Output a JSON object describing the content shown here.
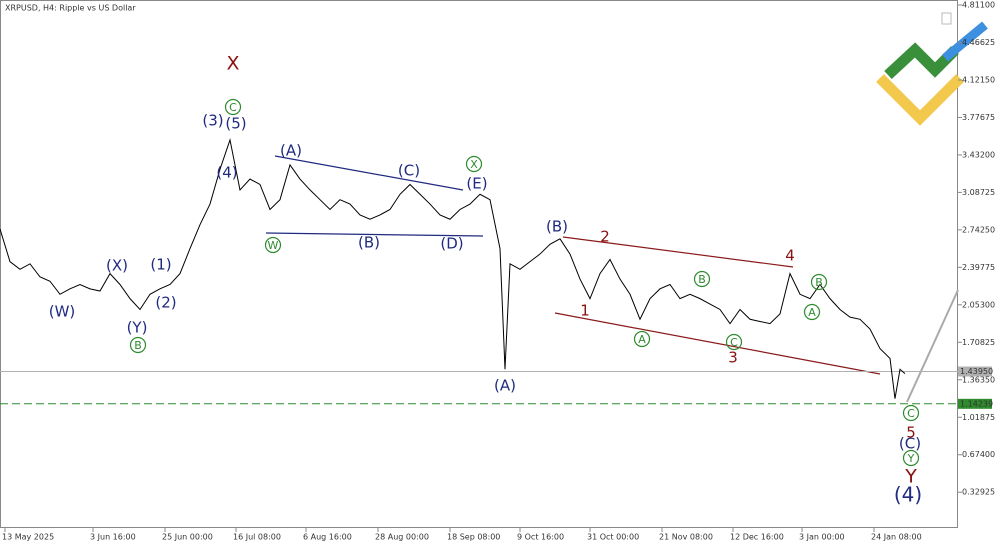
{
  "chart_data": {
    "type": "line",
    "title": "XRPUSD, H4:  Ripple vs US Dollar",
    "series": [
      {
        "name": "XRPUSD",
        "color": "#000000",
        "x": [
          0,
          10,
          20,
          30,
          40,
          50,
          60,
          70,
          80,
          90,
          100,
          110,
          120,
          130,
          140,
          150,
          160,
          170,
          180,
          190,
          200,
          210,
          220,
          230,
          240,
          250,
          260,
          270,
          280,
          290,
          300,
          310,
          320,
          330,
          340,
          350,
          360,
          370,
          380,
          390,
          400,
          410,
          420,
          430,
          440,
          450,
          460,
          470,
          480,
          490,
          500,
          505,
          510,
          520,
          530,
          540,
          550,
          560,
          570,
          580,
          590,
          600,
          610,
          620,
          630,
          640,
          650,
          660,
          670,
          680,
          690,
          700,
          710,
          720,
          730,
          740,
          750,
          760,
          770,
          780,
          790,
          800,
          810,
          820,
          830,
          840,
          850,
          860,
          870,
          880,
          890,
          895,
          900,
          905
        ],
        "values": [
          2.75,
          2.45,
          2.38,
          2.43,
          2.31,
          2.27,
          2.15,
          2.2,
          2.24,
          2.2,
          2.18,
          2.34,
          2.24,
          2.11,
          2.01,
          2.15,
          2.2,
          2.24,
          2.34,
          2.57,
          2.79,
          2.98,
          3.3,
          3.57,
          3.11,
          3.21,
          3.16,
          2.93,
          3.02,
          3.34,
          3.21,
          3.11,
          3.02,
          2.93,
          3.02,
          2.98,
          2.88,
          2.84,
          2.88,
          2.93,
          3.07,
          3.16,
          3.07,
          2.98,
          2.88,
          2.84,
          2.93,
          2.98,
          3.07,
          3.02,
          2.57,
          1.46,
          2.43,
          2.38,
          2.45,
          2.52,
          2.61,
          2.66,
          2.52,
          2.29,
          2.11,
          2.34,
          2.47,
          2.29,
          2.15,
          1.92,
          2.11,
          2.2,
          2.24,
          2.11,
          2.15,
          2.11,
          2.06,
          2.01,
          1.88,
          2.01,
          1.92,
          1.9,
          1.88,
          1.97,
          2.34,
          2.15,
          2.11,
          2.24,
          2.11,
          2.01,
          1.94,
          1.92,
          1.83,
          1.65,
          1.56,
          1.19,
          1.46,
          1.42
        ]
      }
    ],
    "xlim": [
      0,
      958
    ],
    "xticks": [
      {
        "value": 5,
        "label": "13 May 2025"
      },
      {
        "value": 93,
        "label": "3 Jun 16:00"
      },
      {
        "value": 165,
        "label": "25 Jun 00:00"
      },
      {
        "value": 236,
        "label": "16 Jul 08:00"
      },
      {
        "value": 306,
        "label": "6 Aug 16:00"
      },
      {
        "value": 378,
        "label": "28 Aug 00:00"
      },
      {
        "value": 450,
        "label": "18 Sep 08:00"
      },
      {
        "value": 520,
        "label": "9 Oct 16:00"
      },
      {
        "value": 590,
        "label": "31 Oct 00:00"
      },
      {
        "value": 662,
        "label": "21 Nov 08:00"
      },
      {
        "value": 733,
        "label": "12 Dec 16:00"
      },
      {
        "value": 802,
        "label": "3 Jan 00:00"
      },
      {
        "value": 874,
        "label": "24 Jan 08:00"
      }
    ],
    "ylim": [
      -0.0,
      4.857
    ],
    "yticks": [
      {
        "value": 4.811,
        "label": "4.81100"
      },
      {
        "value": 4.46625,
        "label": "4.46625"
      },
      {
        "value": 4.1215,
        "label": "4.12150"
      },
      {
        "value": 3.77675,
        "label": "3.77675"
      },
      {
        "value": 3.432,
        "label": "3.43200"
      },
      {
        "value": 3.08725,
        "label": "3.08725"
      },
      {
        "value": 2.7425,
        "label": "2.74250"
      },
      {
        "value": 2.39775,
        "label": "2.39775"
      },
      {
        "value": 2.053,
        "label": "2.05300"
      },
      {
        "value": 1.70825,
        "label": "1.70825"
      },
      {
        "value": 1.3635,
        "label": "1.36350"
      },
      {
        "value": 1.01875,
        "label": "1.01875"
      },
      {
        "value": 0.674,
        "label": "0.67400"
      },
      {
        "value": 0.32925,
        "label": "0.32925"
      }
    ],
    "price_lines": [
      {
        "value": 1.4395,
        "label": "1.43950",
        "color": "#b0b0b0"
      },
      {
        "value": 1.14239,
        "label": "1.14239",
        "color": "#2e8b2e"
      }
    ],
    "annotations": [
      "X",
      "C",
      "(3)",
      "(5)",
      "(4)",
      "(A)",
      "(C)",
      "X",
      "(E)",
      "W",
      "(B)",
      "(D)",
      "(X)",
      "(1)",
      "(2)",
      "(W)",
      "(Y)",
      "B",
      "(B)",
      "2",
      "4",
      "1",
      "3",
      "A",
      "B",
      "C",
      "A",
      "B",
      "(A)",
      "C",
      "5",
      "(C)",
      "Y",
      "Y",
      "(4)"
    ]
  }
}
